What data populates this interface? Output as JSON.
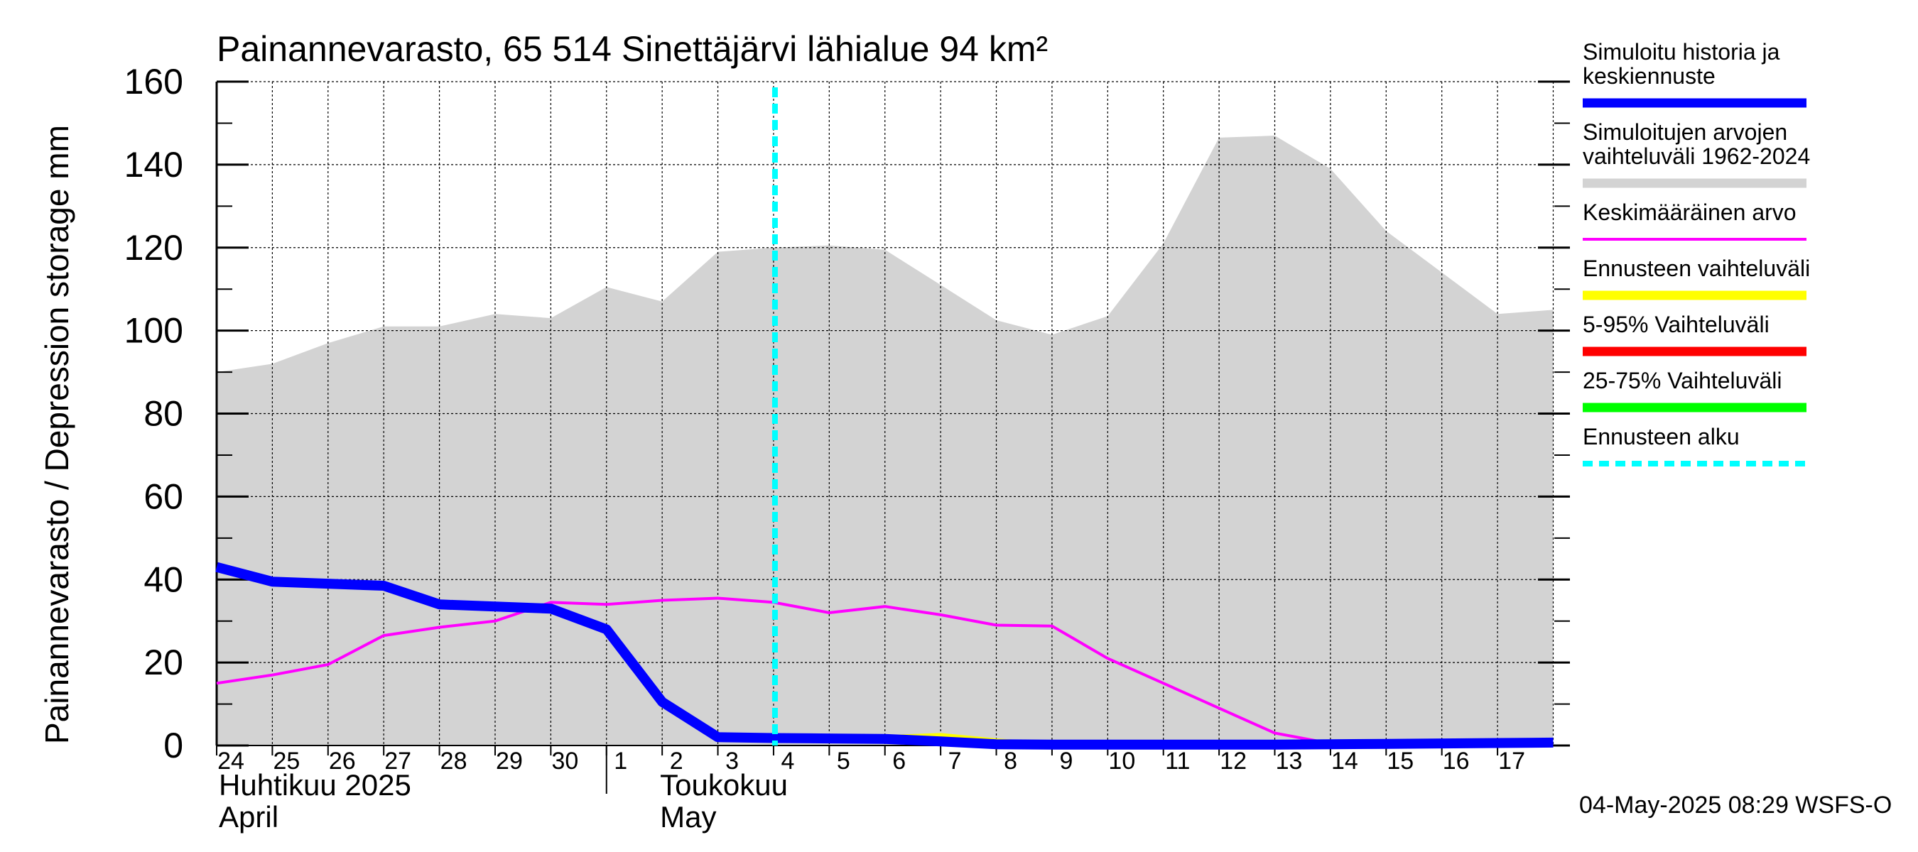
{
  "chart_data": {
    "type": "line",
    "title": "Painannevarasto, 65 514 Sinettäjärvi lähialue 94 km²",
    "ylabel": "Painannevarasto / Depression storage    mm",
    "ylim": [
      0,
      160
    ],
    "y_ticks": [
      "0",
      "20",
      "40",
      "60",
      "80",
      "100",
      "120",
      "140",
      "160"
    ],
    "x_tick_labels": [
      "24",
      "25",
      "26",
      "27",
      "28",
      "29",
      "30",
      "1",
      "2",
      "3",
      "4",
      "5",
      "6",
      "7",
      "8",
      "9",
      "10",
      "11",
      "12",
      "13",
      "14",
      "15",
      "16",
      "17"
    ],
    "x_dates": [
      "2025-04-24",
      "2025-04-25",
      "2025-04-26",
      "2025-04-27",
      "2025-04-28",
      "2025-04-29",
      "2025-04-30",
      "2025-05-01",
      "2025-05-02",
      "2025-05-03",
      "2025-05-04",
      "2025-05-05",
      "2025-05-06",
      "2025-05-07",
      "2025-05-08",
      "2025-05-09",
      "2025-05-10",
      "2025-05-11",
      "2025-05-12",
      "2025-05-13",
      "2025-05-14",
      "2025-05-15",
      "2025-05-16",
      "2025-05-17",
      "2025-05-18"
    ],
    "month_labels": [
      {
        "line1": "Huhtikuu  2025",
        "line2": "April"
      },
      {
        "line1": "Toukokuu",
        "line2": "May"
      }
    ],
    "forecast_start": "2025-05-04",
    "grid": true,
    "legend_position": "right",
    "series": [
      {
        "name": "Simuloitujen arvojen vaihteluväli 1962-2024",
        "kind": "range",
        "color": "#d3d3d3",
        "low": [
          0,
          0,
          0,
          0,
          0,
          0,
          0,
          0,
          0,
          0,
          0,
          0,
          0,
          0,
          0,
          0,
          0,
          0,
          0,
          0,
          0,
          0,
          0,
          0,
          0
        ],
        "high": [
          90,
          92,
          97,
          101,
          101,
          104,
          103,
          110.5,
          107,
          119,
          120,
          120.5,
          119.5,
          111,
          102.5,
          99,
          103.5,
          121,
          146.5,
          147,
          139,
          124,
          114,
          104,
          105
        ]
      },
      {
        "name": "Simuloitu historia ja keskiennuste",
        "color": "#0000ff",
        "values": [
          43,
          39.5,
          39,
          38.5,
          34,
          33.5,
          33,
          28,
          10.5,
          2,
          1.8,
          1.7,
          1.6,
          1,
          0.3,
          0.2,
          0.2,
          0.2,
          0.2,
          0.2,
          0.3,
          0.4,
          0.5,
          0.6,
          0.7
        ]
      },
      {
        "name": "Keskimääräinen arvo",
        "color": "#ff00ff",
        "values": [
          15,
          17,
          19.5,
          26.5,
          28.5,
          30,
          34.5,
          34,
          35,
          35.5,
          34.5,
          32,
          33.5,
          31.5,
          29,
          28.8,
          21,
          15,
          9,
          3,
          0.5,
          0.5,
          0.5,
          0.5,
          0.5
        ]
      },
      {
        "name": "Ennusteen vaihteluväli",
        "color": "#ffff00",
        "values_from_forecast": [
          2,
          2,
          2,
          2.5,
          1.2,
          0.3,
          0.2,
          0.2,
          0.2,
          0.2,
          0.3,
          0.4,
          0.5,
          0.6,
          0.7
        ]
      },
      {
        "name": "5-95% Vaihteluväli",
        "color": "#ff0000",
        "values_from_forecast": [
          1.8,
          1.7,
          1.6,
          1.2,
          0.4,
          0.2,
          0.2,
          0.2,
          0.2,
          0.2,
          0.3,
          0.4,
          0.5,
          0.6,
          0.7
        ]
      },
      {
        "name": "25-75% Vaihteluväli",
        "color": "#00ff00",
        "values_from_forecast": [
          1.8,
          1.7,
          1.6,
          1.1,
          0.35,
          0.2,
          0.2,
          0.2,
          0.2,
          0.2,
          0.3,
          0.4,
          0.5,
          0.6,
          0.7
        ]
      },
      {
        "name": "Ennusteen alku",
        "color": "#00ffff",
        "kind": "vline"
      }
    ],
    "legend": [
      {
        "lines": [
          "Simuloitu historia ja",
          "keskiennuste"
        ],
        "color": "#0000ff",
        "style": "thick"
      },
      {
        "lines": [
          "Simuloitujen arvojen",
          "vaihteluväli 1962-2024"
        ],
        "color": "#d3d3d3",
        "style": "thick"
      },
      {
        "lines": [
          "Keskimääräinen arvo"
        ],
        "color": "#ff00ff",
        "style": "thin"
      },
      {
        "lines": [
          "Ennusteen vaihteluväli"
        ],
        "color": "#ffff00",
        "style": "thick"
      },
      {
        "lines": [
          "5-95% Vaihteluväli"
        ],
        "color": "#ff0000",
        "style": "thick"
      },
      {
        "lines": [
          "25-75% Vaihteluväli"
        ],
        "color": "#00ff00",
        "style": "thick"
      },
      {
        "lines": [
          "Ennusteen alku"
        ],
        "color": "#00ffff",
        "style": "dashed"
      }
    ],
    "footer": "04-May-2025 08:29 WSFS-O"
  }
}
